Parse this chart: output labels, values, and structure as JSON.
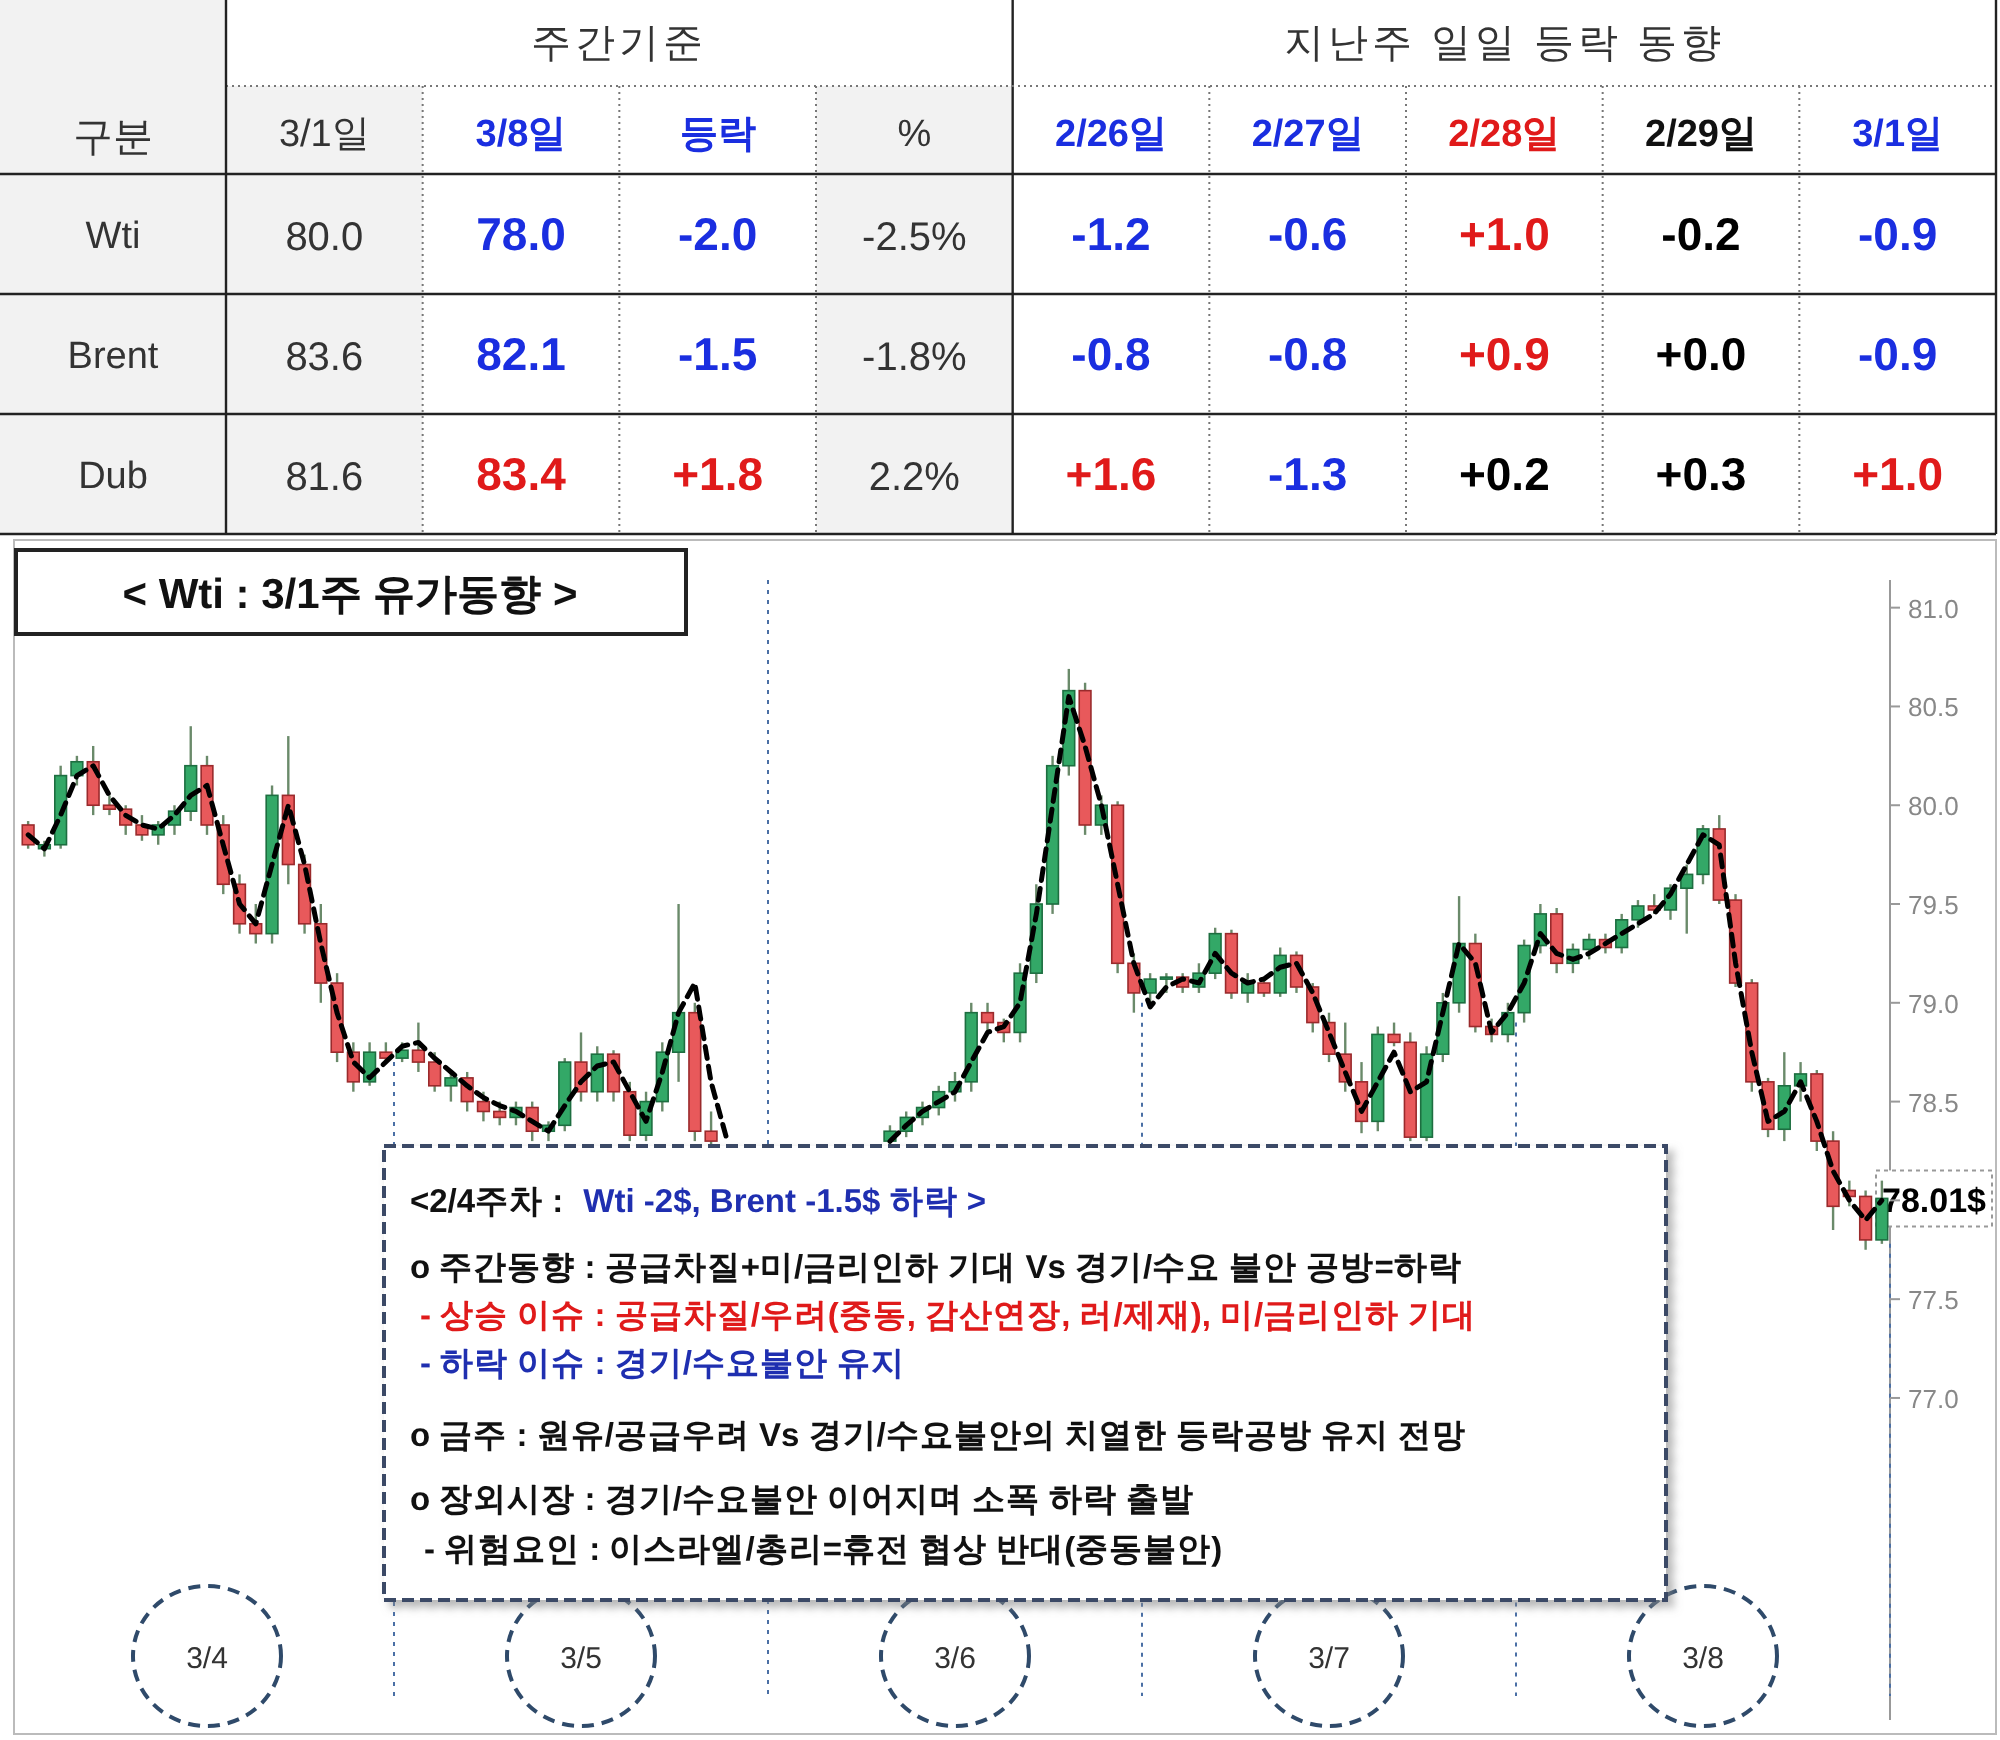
{
  "chart_data": [
    {
      "type": "heatmap",
      "ylabel": "구분",
      "annotations": [
        "주간기준",
        "지난주 일일 등락 동향"
      ],
      "categories": [
        "3/1일",
        "3/8일",
        "등락",
        "%",
        "2/26일",
        "2/27일",
        "2/28일",
        "2/29일",
        "3/1일"
      ],
      "y_categories": [
        "Wti",
        "Brent",
        "Dub"
      ],
      "cells": [
        [
          80.0,
          78.0,
          -2.0,
          -2.5,
          -1.2,
          -0.6,
          1.0,
          -0.2,
          -0.9
        ],
        [
          83.6,
          82.1,
          -1.5,
          -1.8,
          -0.8,
          -0.8,
          0.9,
          0.0,
          -0.9
        ],
        [
          81.6,
          83.4,
          1.8,
          2.2,
          1.6,
          -1.3,
          0.2,
          0.3,
          1.0
        ]
      ],
      "cell_labels": [
        [
          "80.0",
          "78.0",
          "-2.0",
          "-2.5%",
          "-1.2",
          "-0.6",
          "+1.0",
          "-0.2",
          "-0.9"
        ],
        [
          "83.6",
          "82.1",
          "-1.5",
          "-1.8%",
          "-0.8",
          "-0.8",
          "+0.9",
          "+0.0",
          "-0.9"
        ],
        [
          "81.6",
          "83.4",
          "+1.8",
          "2.2%",
          "+1.6",
          "-1.3",
          "+0.2",
          "+0.3",
          "+1.0"
        ]
      ]
    },
    {
      "type": "candlestick",
      "title": "< Wti : 3/1주 유가동향 >",
      "tick_labels": "y",
      "grid": false,
      "ylim": [
        75.37,
        81.14
      ],
      "yticks": [
        {
          "value": 77,
          "label": "77.0"
        },
        77.5,
        {
          "value": 78,
          "label": null
        },
        78.5,
        {
          "value": 79,
          "label": "79.0"
        },
        79.5,
        {
          "value": 80,
          "label": "80.0"
        },
        80.5,
        {
          "value": 81,
          "label": "81.0"
        }
      ],
      "annotations": [
        "3/4",
        "3/5",
        "3/6",
        "3/7",
        "3/8",
        "78.01$"
      ],
      "categories": [
        null,
        null,
        null,
        null,
        null,
        null,
        null,
        null,
        null,
        null,
        null,
        null,
        null,
        null,
        null,
        null,
        null,
        null,
        null,
        null,
        null,
        null,
        null,
        null,
        null,
        null,
        null,
        null,
        null,
        null,
        null,
        null,
        null,
        null,
        null,
        null,
        null,
        null,
        null,
        null,
        null,
        null,
        null,
        null,
        null,
        null,
        null,
        null,
        null,
        null,
        null,
        null,
        null,
        null,
        null,
        null,
        null,
        null,
        null,
        null,
        null,
        null,
        null,
        null,
        null,
        null,
        null,
        null,
        null,
        null,
        null,
        null,
        null,
        null,
        null,
        null,
        null,
        null,
        null,
        null,
        null,
        null,
        null,
        null,
        null,
        null,
        null,
        null,
        null,
        null,
        null,
        null,
        null,
        null,
        null,
        null,
        null,
        null,
        null,
        null,
        null,
        null,
        null,
        null,
        null,
        null,
        null,
        null,
        null,
        null,
        null,
        null,
        null,
        null,
        null
      ],
      "ohlc": [
        [
          79.9,
          79.92,
          79.78,
          79.8
        ],
        [
          79.78,
          79.82,
          79.74,
          79.8
        ],
        [
          79.8,
          80.2,
          79.78,
          80.15
        ],
        [
          80.15,
          80.25,
          80.1,
          80.22
        ],
        [
          80.22,
          80.3,
          79.95,
          80.0
        ],
        [
          80.0,
          80.05,
          79.95,
          79.98
        ],
        [
          79.98,
          80.0,
          79.85,
          79.9
        ],
        [
          79.9,
          79.95,
          79.82,
          79.85
        ],
        [
          79.85,
          79.92,
          79.8,
          79.9
        ],
        [
          79.9,
          80.0,
          79.85,
          79.97
        ],
        [
          79.97,
          80.4,
          79.92,
          80.2
        ],
        [
          80.2,
          80.25,
          79.85,
          79.9
        ],
        [
          79.9,
          79.95,
          79.55,
          79.6
        ],
        [
          79.6,
          79.65,
          79.35,
          79.4
        ],
        [
          79.4,
          79.5,
          79.3,
          79.35
        ],
        [
          79.35,
          80.1,
          79.3,
          80.05
        ],
        [
          80.05,
          80.35,
          79.6,
          79.7
        ],
        [
          79.7,
          79.75,
          79.35,
          79.4
        ],
        [
          79.4,
          79.5,
          79.0,
          79.1
        ],
        [
          79.1,
          79.15,
          78.7,
          78.75
        ],
        [
          78.75,
          78.8,
          78.55,
          78.6
        ],
        [
          78.6,
          78.8,
          78.58,
          78.75
        ],
        [
          78.75,
          78.8,
          78.7,
          78.72
        ],
        [
          78.72,
          78.8,
          78.7,
          78.76
        ],
        [
          78.76,
          78.9,
          78.65,
          78.7
        ],
        [
          78.7,
          78.75,
          78.55,
          78.58
        ],
        [
          78.58,
          78.65,
          78.5,
          78.62
        ],
        [
          78.62,
          78.65,
          78.45,
          78.5
        ],
        [
          78.5,
          78.55,
          78.4,
          78.45
        ],
        [
          78.45,
          78.5,
          78.38,
          78.42
        ],
        [
          78.42,
          78.5,
          78.38,
          78.47
        ],
        [
          78.47,
          78.5,
          78.3,
          78.35
        ],
        [
          78.35,
          78.4,
          78.3,
          78.38
        ],
        [
          78.38,
          78.72,
          78.35,
          78.7
        ],
        [
          78.7,
          78.85,
          78.5,
          78.55
        ],
        [
          78.55,
          78.78,
          78.5,
          78.74
        ],
        [
          78.74,
          78.76,
          78.5,
          78.55
        ],
        [
          78.55,
          78.6,
          78.3,
          78.33
        ],
        [
          78.33,
          78.55,
          78.3,
          78.5
        ],
        [
          78.5,
          78.8,
          78.45,
          78.75
        ],
        [
          78.75,
          79.5,
          78.6,
          78.95
        ],
        [
          78.95,
          79.0,
          78.3,
          78.35
        ],
        [
          78.35,
          78.45,
          78.28,
          78.3
        ],
        null,
        null,
        null,
        null,
        null,
        null,
        null,
        null,
        null,
        null,
        [
          78.3,
          78.38,
          78.28,
          78.35
        ],
        [
          78.35,
          78.45,
          78.32,
          78.42
        ],
        [
          78.42,
          78.5,
          78.38,
          78.47
        ],
        [
          78.47,
          78.58,
          78.43,
          78.55
        ],
        [
          78.55,
          78.65,
          78.5,
          78.6
        ],
        [
          78.6,
          79.0,
          78.55,
          78.95
        ],
        [
          78.95,
          79.0,
          78.85,
          78.9
        ],
        [
          78.9,
          78.92,
          78.8,
          78.85
        ],
        [
          78.85,
          79.2,
          78.8,
          79.15
        ],
        [
          79.15,
          79.6,
          79.1,
          79.5
        ],
        [
          79.5,
          80.25,
          79.45,
          80.2
        ],
        [
          80.2,
          80.69,
          80.15,
          80.58
        ],
        [
          80.58,
          80.62,
          79.85,
          79.9
        ],
        [
          79.9,
          80.05,
          79.85,
          80.0
        ],
        [
          80.0,
          80.02,
          79.15,
          79.2
        ],
        [
          79.2,
          79.25,
          78.95,
          79.05
        ],
        [
          79.05,
          79.15,
          79.0,
          79.12
        ],
        [
          79.12,
          79.15,
          79.05,
          79.13
        ],
        [
          79.13,
          79.15,
          79.05,
          79.08
        ],
        [
          79.08,
          79.2,
          79.05,
          79.15
        ],
        [
          79.15,
          79.38,
          79.12,
          79.35
        ],
        [
          79.35,
          79.37,
          79.02,
          79.05
        ],
        [
          79.05,
          79.15,
          79.0,
          79.1
        ],
        [
          79.1,
          79.12,
          79.03,
          79.05
        ],
        [
          79.05,
          79.28,
          79.03,
          79.24
        ],
        [
          79.24,
          79.26,
          79.05,
          79.08
        ],
        [
          79.08,
          79.1,
          78.85,
          78.9
        ],
        [
          78.9,
          78.95,
          78.7,
          78.74
        ],
        [
          78.74,
          78.9,
          78.55,
          78.6
        ],
        [
          78.6,
          78.7,
          78.34,
          78.4
        ],
        [
          78.4,
          78.88,
          78.35,
          78.84
        ],
        [
          78.84,
          78.9,
          78.78,
          78.8
        ],
        [
          78.8,
          78.85,
          78.3,
          78.32
        ],
        [
          78.32,
          78.78,
          78.3,
          78.74
        ],
        [
          78.74,
          79.05,
          78.7,
          79.0
        ],
        [
          79.0,
          79.54,
          78.95,
          79.3
        ],
        [
          79.3,
          79.35,
          78.85,
          78.88
        ],
        [
          78.88,
          78.92,
          78.8,
          78.84
        ],
        [
          78.84,
          79.0,
          78.8,
          78.95
        ],
        [
          78.95,
          79.32,
          78.9,
          79.29
        ],
        [
          79.29,
          79.5,
          79.25,
          79.45
        ],
        [
          79.45,
          79.48,
          79.15,
          79.2
        ],
        [
          79.2,
          79.3,
          79.15,
          79.27
        ],
        [
          79.27,
          79.35,
          79.22,
          79.32
        ],
        [
          79.32,
          79.35,
          79.25,
          79.28
        ],
        [
          79.28,
          79.45,
          79.25,
          79.42
        ],
        [
          79.42,
          79.52,
          79.38,
          79.49
        ],
        [
          79.49,
          79.55,
          79.45,
          79.47
        ],
        [
          79.47,
          79.6,
          79.42,
          79.58
        ],
        [
          79.58,
          79.7,
          79.35,
          79.65
        ],
        [
          79.65,
          79.9,
          79.6,
          79.88
        ],
        [
          79.88,
          79.95,
          79.5,
          79.52
        ],
        [
          79.52,
          79.55,
          79.08,
          79.1
        ],
        [
          79.1,
          79.12,
          78.55,
          78.6
        ],
        [
          78.6,
          78.62,
          78.32,
          78.36
        ],
        [
          78.36,
          78.75,
          78.3,
          78.58
        ],
        [
          78.58,
          78.7,
          78.5,
          78.64
        ],
        [
          78.64,
          78.66,
          78.25,
          78.3
        ],
        [
          78.3,
          78.35,
          77.85,
          77.97
        ],
        [
          78.05,
          78.1,
          77.97,
          78.02
        ],
        [
          78.02,
          78.05,
          77.75,
          77.8
        ],
        [
          77.8,
          78.1,
          77.78,
          78.01
        ]
      ],
      "series": [
        {
          "type": "line",
          "color": "#000000",
          "line_style": "dashed",
          "values": [
            79.85,
            79.78,
            79.95,
            80.15,
            80.2,
            80.05,
            79.95,
            79.9,
            79.88,
            79.95,
            80.05,
            80.1,
            79.8,
            79.5,
            79.4,
            79.7,
            80.0,
            79.7,
            79.3,
            78.95,
            78.7,
            78.62,
            78.7,
            78.78,
            78.8,
            78.72,
            78.65,
            78.58,
            78.52,
            78.48,
            78.45,
            78.4,
            78.35,
            78.48,
            78.6,
            78.68,
            78.7,
            78.55,
            78.4,
            78.65,
            78.95,
            79.1,
            78.6,
            78.3,
            null,
            null,
            null,
            null,
            null,
            null,
            null,
            null,
            null,
            78.3,
            78.38,
            78.45,
            78.5,
            78.55,
            78.7,
            78.85,
            78.88,
            79.0,
            79.45,
            80.0,
            80.55,
            80.3,
            80.0,
            79.6,
            79.2,
            78.98,
            79.08,
            79.12,
            79.1,
            79.25,
            79.15,
            79.1,
            79.12,
            79.18,
            79.2,
            79.05,
            78.85,
            78.65,
            78.45,
            78.6,
            78.75,
            78.55,
            78.6,
            78.95,
            79.3,
            79.2,
            78.85,
            78.95,
            79.1,
            79.35,
            79.25,
            79.22,
            79.25,
            79.3,
            79.35,
            79.4,
            79.45,
            79.55,
            79.7,
            79.85,
            79.8,
            79.2,
            78.75,
            78.4,
            78.45,
            78.6,
            78.4,
            78.15,
            78.0,
            77.9,
            78.0
          ]
        }
      ]
    },
    {
      "type": "other",
      "annotations": [
        "<2/4주차 :",
        "Wti -2$, Brent -1.5$ 하락 >",
        "o 주간동향 : 공급차질+미/금리인하 기대 Vs 경기/수요 불안 공방=하락",
        "- 상승 이슈 : 공급차질/우려(중동, 감산연장, 러/제재), 미/금리인하 기대",
        "- 하락 이슈 : 경기/수요불안 유지",
        "o 금주 : 원유/공급우려 Vs 경기/수요불안의 치열한 등락공방 유지 전망",
        "o 장외시장 : 경기/수요불안 이어지며 소폭 하락 출발",
        "- 위험요인 : 이스라엘/총리=휴전 협상 반대(중동불안)"
      ]
    }
  ]
}
